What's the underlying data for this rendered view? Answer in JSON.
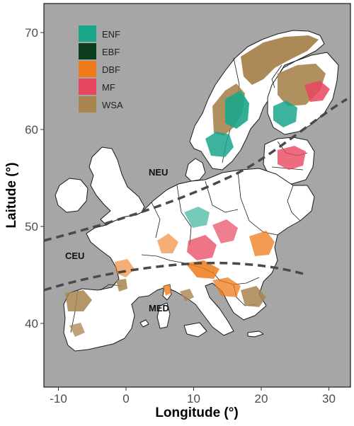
{
  "map": {
    "x_axis_title": "Longitude (°)",
    "y_axis_title": "Laitude (°)",
    "x_ticks": [
      {
        "value": -10,
        "label": "-10"
      },
      {
        "value": 0,
        "label": "0"
      },
      {
        "value": 10,
        "label": "10"
      },
      {
        "value": 20,
        "label": "20"
      },
      {
        "value": 30,
        "label": "30"
      }
    ],
    "y_ticks": [
      {
        "value": 40,
        "label": "40"
      },
      {
        "value": 50,
        "label": "50"
      },
      {
        "value": 60,
        "label": "60"
      },
      {
        "value": 70,
        "label": "70"
      }
    ],
    "background_color": "#a6a6a6",
    "land_color": "#ffffff",
    "regions": [
      {
        "key": "neu",
        "label": "NEU"
      },
      {
        "key": "ceu",
        "label": "CEU"
      },
      {
        "key": "med",
        "label": "MED"
      }
    ],
    "legend": [
      {
        "label": "ENF",
        "color": "#1aa68b"
      },
      {
        "label": "EBF",
        "color": "#0b3d1c"
      },
      {
        "label": "DBF",
        "color": "#ef7a1a"
      },
      {
        "label": "MF",
        "color": "#e8475f"
      },
      {
        "label": "WSA",
        "color": "#a8844f"
      }
    ]
  }
}
